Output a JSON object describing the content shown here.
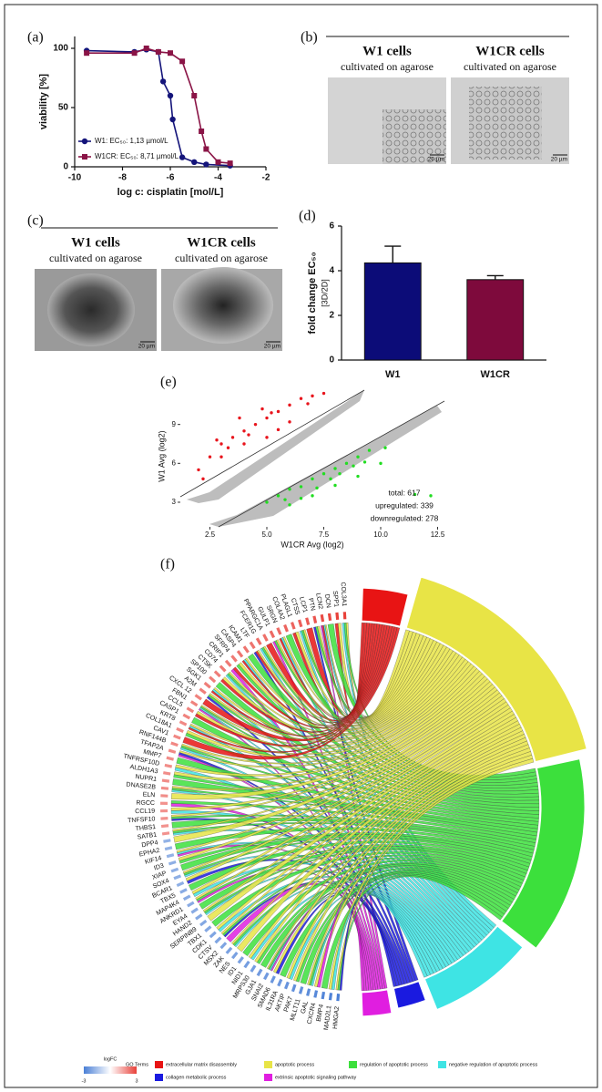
{
  "chart_data": [
    {
      "type": "line",
      "panel_label": "(a)",
      "x_label": "log c: cisplatin [mol/L]",
      "y_label": "viability [%]",
      "xlim": [
        -10,
        -2
      ],
      "xticks": [
        -10,
        -8,
        -6,
        -4,
        -2
      ],
      "ylim": [
        0,
        110
      ],
      "yticks": [
        0,
        50,
        100
      ],
      "legend": "lower left",
      "series": [
        {
          "name": "W1: EC₅₀: 1,13 µmol/L",
          "color": "#14147a",
          "marker": "circle",
          "x": [
            -9.5,
            -7.5,
            -7,
            -6.5,
            -6.3,
            -6,
            -5.9,
            -5.5,
            -5,
            -4.5,
            -3.5
          ],
          "values": [
            98,
            97,
            99,
            97,
            72,
            60,
            40,
            8,
            4,
            2,
            1
          ]
        },
        {
          "name": "W1CR: EC₅₀: 8,71 µmol/L",
          "color": "#8a1446",
          "marker": "square",
          "x": [
            -9.5,
            -7.5,
            -7,
            -6.5,
            -6,
            -5.5,
            -5,
            -4.7,
            -4.5,
            -4,
            -3.5
          ],
          "values": [
            96,
            96,
            100,
            97,
            96,
            89,
            60,
            30,
            15,
            4,
            3
          ]
        }
      ]
    },
    {
      "type": "bar",
      "panel_label": "(d)",
      "y_label": "fold change EC₅₀",
      "y_sublabel": "[3D/2D]",
      "categories": [
        "W1",
        "W1CR"
      ],
      "values": [
        4.35,
        3.6
      ],
      "errors": [
        0.75,
        0.18
      ],
      "colors": [
        "#0c0c78",
        "#7e0a3c"
      ],
      "ylim": [
        0,
        6
      ],
      "yticks": [
        0,
        2,
        4,
        6
      ]
    },
    {
      "type": "scatter",
      "panel_label": "(e)",
      "x_label": "W1CR Avg (log2)",
      "y_label": "W1 Avg (log2)",
      "xlim": [
        1.2,
        12.8
      ],
      "xticks": [
        2.5,
        {
          "value": 5,
          "label": "5.0"
        },
        7.5,
        {
          "value": 10,
          "label": "10.0"
        },
        12.5
      ],
      "ylim": [
        1.1,
        12
      ],
      "yticks": [
        3,
        6,
        9
      ],
      "annotations": [
        "total: 617",
        "upregulated: 339",
        "downregulated: 278"
      ],
      "series": [
        {
          "color": "#e8141c",
          "x": [
            2,
            2.5,
            3,
            3.5,
            4,
            4.5,
            5,
            5.5,
            6,
            6.5,
            7,
            3,
            4,
            5,
            2.2,
            3.8,
            4.8,
            6,
            5.5,
            2.8,
            4.2,
            3.3,
            6.8,
            7.5,
            5.2
          ],
          "values": [
            5.5,
            6.5,
            7.5,
            8,
            8.5,
            9,
            9.5,
            10,
            10.5,
            11,
            11.2,
            6.5,
            7.5,
            8,
            4.8,
            9.5,
            10.2,
            9.2,
            8.6,
            7.8,
            8.2,
            7.2,
            10.6,
            11.4,
            9.9
          ]
        },
        {
          "color": "#22dd22",
          "x": [
            5,
            5.5,
            6,
            6.5,
            7,
            7.5,
            8,
            8.5,
            9,
            9.5,
            6,
            7,
            8,
            9,
            10,
            11.5,
            12.2,
            6.5,
            7.8,
            8.8,
            5.8,
            7.2,
            9.3,
            10.2,
            8.2
          ],
          "values": [
            3,
            3.5,
            4,
            4.2,
            4.8,
            5.2,
            5.6,
            6,
            6.5,
            7,
            2.8,
            3.5,
            4.3,
            5,
            6,
            3.6,
            3.5,
            3.3,
            4.8,
            5.8,
            3.2,
            4.1,
            6.1,
            7.2,
            5.2
          ]
        }
      ]
    }
  ],
  "panel_b": {
    "panel_label": "(b)",
    "columns": [
      {
        "title": "W1 cells",
        "subtitle": "cultivated on agarose",
        "scale": "20 µm"
      },
      {
        "title": "W1CR cells",
        "subtitle": "cultivated on agarose",
        "scale": "20 µm"
      }
    ]
  },
  "panel_c": {
    "panel_label": "(c)",
    "columns": [
      {
        "title": "W1 cells",
        "subtitle": "cultivated on agarose",
        "scale": "20 µm"
      },
      {
        "title": "W1CR cells",
        "subtitle": "cultivated on agarose",
        "scale": "20 µm"
      }
    ]
  },
  "panel_f": {
    "panel_label": "(f)",
    "genes": [
      "COL3A1",
      "SPP1",
      "DCN",
      "LCN2",
      "PTN",
      "LCP1",
      "CTSS",
      "PLAGL1",
      "COL4A2",
      "SRGN",
      "GULP1",
      "PPARGC1A",
      "FCER1G",
      "LTF",
      "ICAM1",
      "CASP4",
      "SFRP4",
      "CRIP1",
      "CD74",
      "CTSK",
      "SP100",
      "SGK1",
      "A2M",
      "CXCL 12",
      "FBN1",
      "CCL5",
      "CASP1",
      "KRT8",
      "COL18A1",
      "CAV1",
      "RNF144B",
      "TFAP2A",
      "MMP7",
      "TNFRSF10D",
      "ALDH1A3",
      "NUPR1",
      "DNASE2B",
      "ELN",
      "RGCC",
      "CCL19",
      "TNFSF10",
      "THBS1",
      "SATB1",
      "DPP4",
      "EPHA2",
      "KIF14",
      "ID3",
      "XIAP",
      "SOX4",
      "BCAR1",
      "TBX5",
      "MAP4K4",
      "ANKRD1",
      "EYA4",
      "HAND2",
      "SERPINB9",
      "TBX1",
      "CDK1",
      "CTSV",
      "MSX2",
      "ZAK",
      "NES",
      "ID1",
      "NID1",
      "MRPS30",
      "GJA1",
      "SNAI2",
      "SMAD6",
      "IL31RA",
      "AKTIP",
      "PAK7",
      "MLLT11",
      "GAL",
      "CXCR4",
      "BMP4",
      "MAD2L1",
      "HMGA2"
    ],
    "logfc": [
      3,
      3,
      2.9,
      2.8,
      2.6,
      2.5,
      2.4,
      2.3,
      2.3,
      2.2,
      2.2,
      2.1,
      2.1,
      2,
      2,
      2,
      1.9,
      1.9,
      1.9,
      1.8,
      1.8,
      1.8,
      1.8,
      1.7,
      1.7,
      1.7,
      1.7,
      1.6,
      1.6,
      1.6,
      1.6,
      1.6,
      1.5,
      1.5,
      1.5,
      1.5,
      1.5,
      1.5,
      1.4,
      1.4,
      1.4,
      1.4,
      1.4,
      -1.5,
      -1.5,
      -1.5,
      -1.6,
      -1.6,
      -1.6,
      -1.6,
      -1.7,
      -1.7,
      -1.7,
      -1.7,
      -1.8,
      -1.8,
      -1.8,
      -1.9,
      -1.9,
      -1.9,
      -2,
      -2,
      -2,
      -2.1,
      -2.1,
      -2.2,
      -2.2,
      -2.3,
      -2.3,
      -2.4,
      -2.5,
      -2.5,
      -2.6,
      -2.7,
      -2.8,
      -2.9,
      -3
    ],
    "logfc_title": "logFC",
    "logfc_range": [
      -3,
      3
    ],
    "terms_title": "GO Terms",
    "terms": [
      {
        "name": "extracellular matrix disassembly",
        "color": "#e81414"
      },
      {
        "name": "apoptotic process",
        "color": "#e8e446"
      },
      {
        "name": "regulation of apoptotic process",
        "color": "#3ce03c"
      },
      {
        "name": "negative regulation of apoptotic process",
        "color": "#3ee4e4"
      },
      {
        "name": "collagen metabolic process",
        "color": "#1a1ae0"
      },
      {
        "name": "extrinsic apoptotic signaling pathway",
        "color": "#e01ee0"
      }
    ]
  }
}
